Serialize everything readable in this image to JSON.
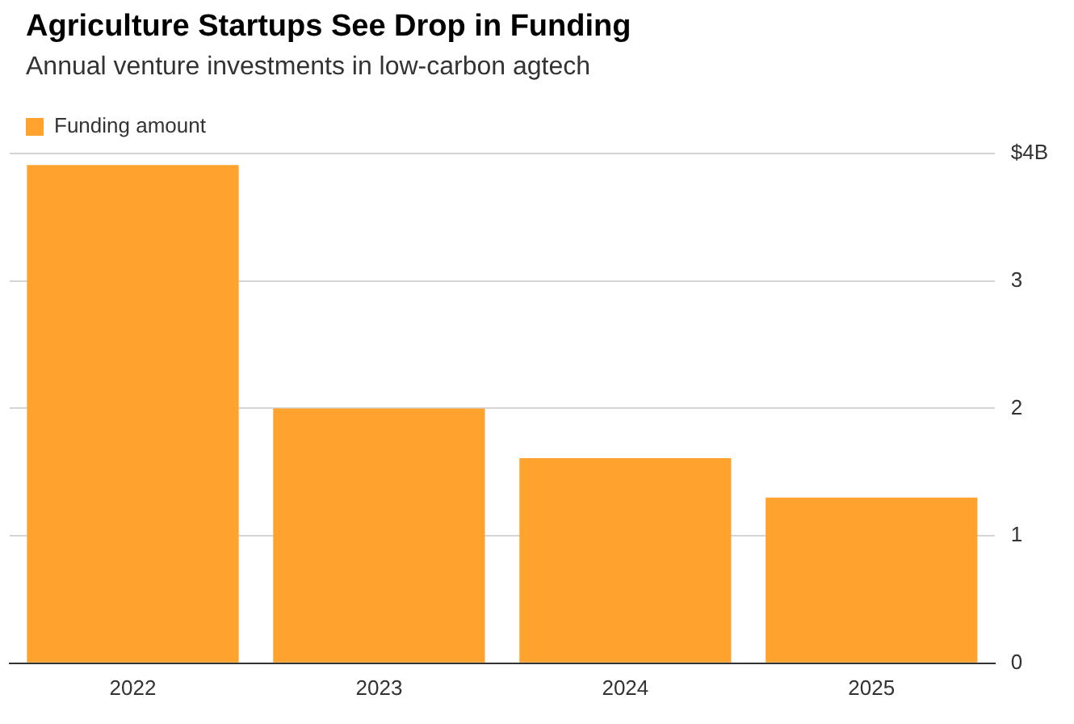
{
  "chart_data": {
    "type": "bar",
    "title": "Agriculture Startups See Drop in Funding",
    "subtitle": "Annual venture investments in low-carbon agtech",
    "categories": [
      "2022",
      "2023",
      "2024",
      "2025"
    ],
    "series": [
      {
        "name": "Funding amount",
        "color": "#ffa22e",
        "values": [
          3.91,
          2.0,
          1.61,
          1.3
        ]
      }
    ],
    "ylim": [
      0,
      4
    ],
    "yticks": [
      0,
      1,
      2,
      3,
      {
        "value": 4,
        "label": "$4B"
      }
    ],
    "grid": "y",
    "legend": "top left"
  }
}
